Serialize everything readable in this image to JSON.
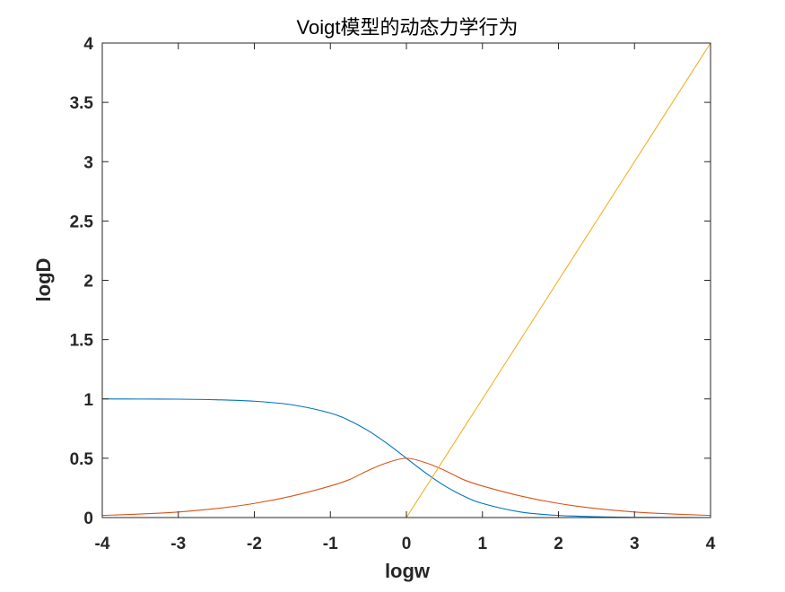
{
  "chart_data": {
    "type": "line",
    "title": "Voigt模型的动态力学行为",
    "xlabel": "logw",
    "ylabel": "logD",
    "xlim": [
      -4,
      4
    ],
    "ylim": [
      0,
      4
    ],
    "xticks": [
      "-4",
      "-3",
      "-2",
      "-1",
      "0",
      "1",
      "2",
      "3",
      "4"
    ],
    "yticks": [
      "0",
      "0.5",
      "1",
      "1.5",
      "2",
      "2.5",
      "3",
      "3.5",
      "4"
    ],
    "grid": false,
    "legend": "none",
    "x": [
      -4,
      -3.5,
      -3,
      -2.5,
      -2,
      -1.5,
      -1,
      -0.75,
      -0.5,
      -0.25,
      0,
      0.25,
      0.5,
      0.75,
      1,
      1.5,
      2,
      2.5,
      3,
      3.5,
      4
    ],
    "series": [
      {
        "color": "#0072BD",
        "values": [
          1.0,
          0.999,
          0.998,
          0.993,
          0.981,
          0.95,
          0.881,
          0.818,
          0.731,
          0.622,
          0.5,
          0.378,
          0.269,
          0.182,
          0.119,
          0.047,
          0.018,
          0.007,
          0.002,
          0.001,
          0.0
        ]
      },
      {
        "color": "#D95319",
        "values": [
          0.018,
          0.03,
          0.047,
          0.076,
          0.119,
          0.182,
          0.266,
          0.32,
          0.398,
          0.463,
          0.5,
          0.463,
          0.398,
          0.32,
          0.266,
          0.182,
          0.119,
          0.076,
          0.047,
          0.03,
          0.018
        ]
      },
      {
        "color": "#EDB120",
        "values": [
          null,
          null,
          null,
          null,
          null,
          null,
          null,
          null,
          null,
          null,
          0,
          0.25,
          0.5,
          0.75,
          1,
          1.5,
          2,
          2.5,
          3,
          3.5,
          4
        ]
      }
    ]
  },
  "colors": {
    "axis": "#262626",
    "background": "#ffffff"
  }
}
